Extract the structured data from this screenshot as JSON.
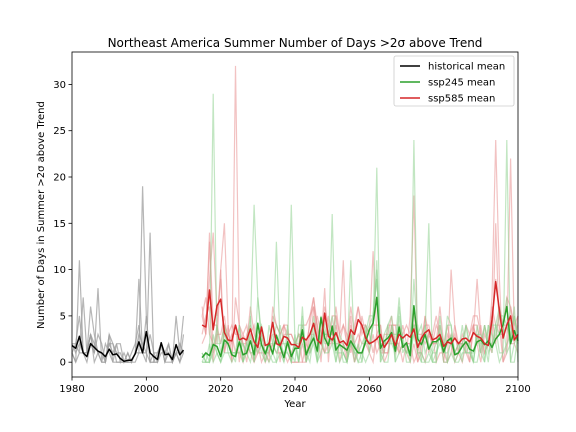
{
  "chart_data": {
    "type": "line",
    "title": "Northeast America Summer Number of Days >2σ above Trend",
    "xlabel": "Year",
    "ylabel": "Number of Days in Summer >2σ above Trend",
    "xlim": [
      1980,
      2100
    ],
    "ylim": [
      -1.6,
      33.5
    ],
    "xticks": [
      1980,
      2000,
      2020,
      2040,
      2060,
      2080,
      2100
    ],
    "yticks": [
      0,
      5,
      10,
      15,
      20,
      25,
      30
    ],
    "grid": false,
    "legend_position": "top-right",
    "series": [
      {
        "name": "historical mean",
        "color": "#000000",
        "x": [
          1980,
          1981,
          1982,
          1983,
          1984,
          1985,
          1986,
          1987,
          1988,
          1989,
          1990,
          1991,
          1992,
          1993,
          1994,
          1995,
          1996,
          1997,
          1998,
          1999,
          2000,
          2001,
          2002,
          2003,
          2004,
          2005,
          2006,
          2007,
          2008,
          2009,
          2010
        ],
        "y": [
          1.8,
          1.5,
          2.8,
          1.0,
          0.6,
          2.0,
          1.6,
          1.2,
          1.0,
          0.6,
          1.4,
          0.8,
          0.9,
          0.4,
          0.1,
          0.2,
          0.2,
          0.9,
          2.2,
          1.0,
          3.3,
          1.0,
          0.6,
          0.3,
          2.1,
          0.8,
          0.9,
          0.3,
          1.9,
          0.8,
          1.3
        ]
      },
      {
        "name": "ssp245 mean",
        "color": "#2ca02c",
        "x": [
          2015,
          2016,
          2017,
          2018,
          2019,
          2020,
          2021,
          2022,
          2023,
          2024,
          2025,
          2026,
          2027,
          2028,
          2029,
          2030,
          2031,
          2032,
          2033,
          2034,
          2035,
          2036,
          2037,
          2038,
          2039,
          2040,
          2041,
          2042,
          2043,
          2044,
          2045,
          2046,
          2047,
          2048,
          2049,
          2050,
          2051,
          2052,
          2053,
          2054,
          2055,
          2056,
          2057,
          2058,
          2059,
          2060,
          2061,
          2062,
          2063,
          2064,
          2065,
          2066,
          2067,
          2068,
          2069,
          2070,
          2071,
          2072,
          2073,
          2074,
          2075,
          2076,
          2077,
          2078,
          2079,
          2080,
          2081,
          2082,
          2083,
          2084,
          2085,
          2086,
          2087,
          2088,
          2089,
          2090,
          2091,
          2092,
          2093,
          2094,
          2095,
          2096,
          2097,
          2098,
          2099,
          2100
        ],
        "y": [
          0.5,
          1.0,
          0.7,
          1.9,
          1.7,
          0.6,
          2.4,
          2.0,
          0.8,
          0.6,
          2.2,
          0.8,
          1.0,
          2.3,
          0.8,
          4.2,
          1.9,
          0.9,
          2.1,
          0.9,
          2.9,
          1.7,
          0.5,
          2.2,
          0.6,
          1.5,
          1.5,
          3.5,
          0.8,
          1.8,
          2.6,
          1.2,
          4.8,
          2.6,
          1.8,
          3.9,
          1.3,
          1.9,
          1.6,
          1.3,
          2.3,
          1.6,
          1.0,
          1.0,
          2.2,
          3.5,
          4.2,
          7.0,
          1.5,
          2.3,
          2.6,
          3.2,
          1.2,
          3.8,
          1.6,
          2.1,
          0.7,
          6.1,
          2.5,
          1.9,
          3.0,
          1.4,
          2.2,
          2.2,
          2.6,
          1.1,
          2.3,
          2.6,
          0.8,
          1.0,
          1.7,
          2.2,
          1.4,
          1.2,
          2.2,
          2.4,
          1.9,
          2.3,
          1.6,
          2.5,
          3.0,
          4.1,
          6.0,
          2.0,
          3.4,
          2.3
        ]
      },
      {
        "name": "ssp585 mean",
        "color": "#d62728",
        "x": [
          2015,
          2016,
          2017,
          2018,
          2019,
          2020,
          2021,
          2022,
          2023,
          2024,
          2025,
          2026,
          2027,
          2028,
          2029,
          2030,
          2031,
          2032,
          2033,
          2034,
          2035,
          2036,
          2037,
          2038,
          2039,
          2040,
          2041,
          2042,
          2043,
          2044,
          2045,
          2046,
          2047,
          2048,
          2049,
          2050,
          2051,
          2052,
          2053,
          2054,
          2055,
          2056,
          2057,
          2058,
          2059,
          2060,
          2061,
          2062,
          2063,
          2064,
          2065,
          2066,
          2067,
          2068,
          2069,
          2070,
          2071,
          2072,
          2073,
          2074,
          2075,
          2076,
          2077,
          2078,
          2079,
          2080,
          2081,
          2082,
          2083,
          2084,
          2085,
          2086,
          2087,
          2088,
          2089,
          2090,
          2091,
          2092,
          2093,
          2094,
          2095,
          2096,
          2097,
          2098,
          2099,
          2100
        ],
        "y": [
          4.0,
          3.8,
          7.8,
          3.5,
          6.1,
          6.8,
          3.2,
          2.4,
          2.3,
          4.0,
          2.4,
          2.6,
          2.4,
          3.6,
          2.2,
          1.6,
          3.8,
          1.8,
          2.0,
          4.3,
          2.0,
          1.8,
          2.8,
          2.6,
          1.9,
          1.9,
          1.6,
          2.7,
          2.4,
          3.0,
          4.2,
          2.4,
          2.0,
          5.3,
          2.8,
          2.4,
          3.2,
          2.1,
          2.3,
          1.8,
          3.5,
          3.0,
          4.6,
          4.0,
          2.6,
          2.0,
          2.2,
          2.5,
          3.0,
          1.6,
          2.2,
          3.0,
          1.8,
          3.0,
          2.6,
          3.0,
          2.7,
          3.6,
          1.6,
          2.6,
          3.2,
          3.5,
          2.4,
          2.6,
          3.0,
          1.7,
          2.2,
          2.0,
          2.6,
          2.0,
          2.5,
          2.6,
          2.2,
          3.2,
          2.8,
          2.6,
          2.0,
          1.8,
          4.6,
          8.7,
          5.6,
          2.6,
          4.0,
          5.0,
          2.4,
          3.0
        ]
      }
    ]
  }
}
